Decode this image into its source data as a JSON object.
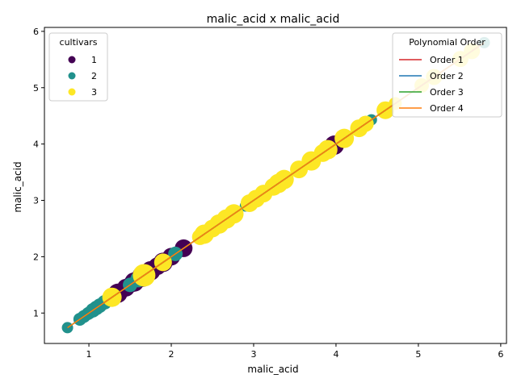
{
  "chart_data": {
    "type": "scatter",
    "title": "malic_acid x malic_acid",
    "xlabel": "malic_acid",
    "ylabel": "malic_acid",
    "xlim": [
      0.46,
      6.07
    ],
    "ylim": [
      0.46,
      6.07
    ],
    "xticks": [
      1,
      2,
      3,
      4,
      5,
      6
    ],
    "yticks": [
      1,
      2,
      3,
      4,
      5,
      6
    ],
    "grid": false,
    "series": [
      {
        "name": "1",
        "color": "#440154",
        "points": [
          {
            "v": 1.35,
            "s": 12
          },
          {
            "v": 1.45,
            "s": 11
          },
          {
            "v": 1.55,
            "s": 12
          },
          {
            "v": 1.65,
            "s": 13
          },
          {
            "v": 1.75,
            "s": 12
          },
          {
            "v": 1.83,
            "s": 11
          },
          {
            "v": 1.9,
            "s": 12
          },
          {
            "v": 2.0,
            "s": 11
          },
          {
            "v": 2.15,
            "s": 11
          },
          {
            "v": 1.5,
            "s": 10
          },
          {
            "v": 3.98,
            "s": 12
          },
          {
            "v": 1.7,
            "s": 11
          }
        ]
      },
      {
        "name": "2",
        "color": "#21918c",
        "points": [
          {
            "v": 0.74,
            "s": 7
          },
          {
            "v": 0.89,
            "s": 8
          },
          {
            "v": 0.94,
            "s": 8
          },
          {
            "v": 0.99,
            "s": 8
          },
          {
            "v": 1.01,
            "s": 8
          },
          {
            "v": 1.05,
            "s": 9
          },
          {
            "v": 1.09,
            "s": 9
          },
          {
            "v": 1.13,
            "s": 9
          },
          {
            "v": 1.19,
            "s": 9
          },
          {
            "v": 1.24,
            "s": 9
          },
          {
            "v": 1.5,
            "s": 9
          },
          {
            "v": 1.6,
            "s": 10
          },
          {
            "v": 2.05,
            "s": 9
          },
          {
            "v": 2.9,
            "s": 7
          },
          {
            "v": 4.43,
            "s": 7
          },
          {
            "v": 5.8,
            "s": 7
          }
        ]
      },
      {
        "name": "3",
        "color": "#fde725",
        "points": [
          {
            "v": 1.28,
            "s": 12
          },
          {
            "v": 1.67,
            "s": 14
          },
          {
            "v": 1.9,
            "s": 11
          },
          {
            "v": 2.35,
            "s": 10
          },
          {
            "v": 2.4,
            "s": 12
          },
          {
            "v": 2.5,
            "s": 11
          },
          {
            "v": 2.58,
            "s": 12
          },
          {
            "v": 2.67,
            "s": 12
          },
          {
            "v": 2.76,
            "s": 12
          },
          {
            "v": 2.95,
            "s": 11
          },
          {
            "v": 3.03,
            "s": 11
          },
          {
            "v": 3.12,
            "s": 11
          },
          {
            "v": 3.24,
            "s": 11
          },
          {
            "v": 3.3,
            "s": 12
          },
          {
            "v": 3.37,
            "s": 12
          },
          {
            "v": 3.55,
            "s": 11
          },
          {
            "v": 3.7,
            "s": 12
          },
          {
            "v": 3.84,
            "s": 11
          },
          {
            "v": 3.9,
            "s": 12
          },
          {
            "v": 4.1,
            "s": 12
          },
          {
            "v": 4.28,
            "s": 11
          },
          {
            "v": 4.36,
            "s": 10
          },
          {
            "v": 4.6,
            "s": 11
          },
          {
            "v": 4.72,
            "s": 8
          },
          {
            "v": 5.04,
            "s": 9
          },
          {
            "v": 5.19,
            "s": 10
          },
          {
            "v": 5.51,
            "s": 10
          },
          {
            "v": 5.65,
            "s": 10
          }
        ]
      }
    ],
    "legends": [
      {
        "title": "cultivars",
        "position": "top-left",
        "entries": [
          {
            "label": "1",
            "color": "#440154"
          },
          {
            "label": "2",
            "color": "#21918c"
          },
          {
            "label": "3",
            "color": "#fde725"
          }
        ]
      },
      {
        "title": "Polynomial Order",
        "position": "top-right",
        "entries": [
          {
            "label": "Order 1",
            "color": "#d62728"
          },
          {
            "label": "Order 2",
            "color": "#1f77b4"
          },
          {
            "label": "Order 3",
            "color": "#2ca02c"
          },
          {
            "label": "Order 4",
            "color": "#ff7f0e"
          }
        ]
      }
    ],
    "fit_lines": [
      {
        "name": "Order 1",
        "color": "#d62728",
        "x": [
          0.74,
          5.8
        ],
        "y": [
          0.74,
          5.8
        ]
      },
      {
        "name": "Order 2",
        "color": "#1f77b4",
        "x": [
          0.74,
          5.8
        ],
        "y": [
          0.74,
          5.8
        ]
      },
      {
        "name": "Order 3",
        "color": "#2ca02c",
        "x": [
          0.74,
          5.8
        ],
        "y": [
          0.74,
          5.8
        ]
      },
      {
        "name": "Order 4",
        "color": "#ff7f0e",
        "x": [
          0.74,
          5.8
        ],
        "y": [
          0.74,
          5.8
        ]
      }
    ]
  }
}
